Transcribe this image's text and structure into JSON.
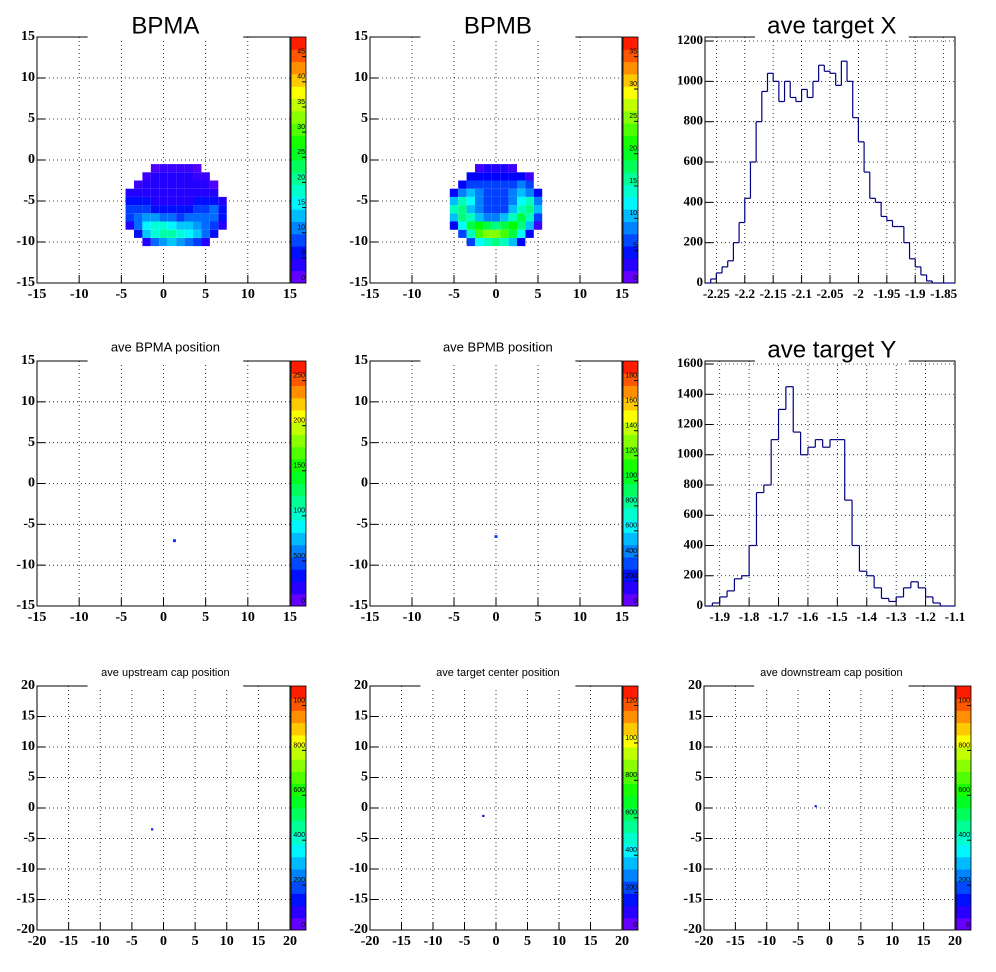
{
  "chart_data": [
    {
      "type": "heatmap",
      "title": "BPMA",
      "xlim": [
        -15,
        15
      ],
      "ylim": [
        -15,
        15
      ],
      "xticks": [
        -15,
        -10,
        -5,
        0,
        5,
        10,
        15
      ],
      "yticks": [
        -15,
        -10,
        -5,
        0,
        5,
        10,
        15
      ],
      "grid": true,
      "x": [
        -4,
        -3,
        -2,
        -1,
        0,
        1,
        2,
        3,
        4,
        5,
        6,
        7
      ],
      "y": [
        -10,
        -9,
        -8,
        -7,
        -6,
        -5,
        -4,
        -3,
        -2,
        -1
      ],
      "z": [
        [
          0,
          0,
          4,
          10,
          12,
          14,
          12,
          10,
          8,
          4,
          0,
          0
        ],
        [
          0,
          6,
          14,
          18,
          20,
          20,
          18,
          16,
          14,
          10,
          6,
          0
        ],
        [
          4,
          10,
          16,
          18,
          18,
          16,
          14,
          14,
          12,
          10,
          8,
          4
        ],
        [
          8,
          10,
          12,
          12,
          10,
          10,
          8,
          10,
          10,
          10,
          10,
          6
        ],
        [
          8,
          8,
          8,
          6,
          6,
          6,
          6,
          6,
          8,
          8,
          10,
          6
        ],
        [
          6,
          6,
          6,
          4,
          4,
          4,
          4,
          4,
          6,
          6,
          6,
          4
        ],
        [
          4,
          4,
          4,
          4,
          4,
          4,
          4,
          4,
          4,
          4,
          4,
          0
        ],
        [
          0,
          3,
          4,
          4,
          4,
          4,
          4,
          4,
          4,
          4,
          2,
          0
        ],
        [
          0,
          0,
          3,
          4,
          4,
          4,
          4,
          4,
          3,
          3,
          0,
          0
        ],
        [
          0,
          0,
          0,
          2,
          3,
          3,
          3,
          3,
          2,
          0,
          0,
          0
        ]
      ],
      "zlim": [
        0,
        49
      ],
      "zlabels": [
        "0",
        "5",
        "10",
        "15",
        "20",
        "25",
        "30",
        "35",
        "40",
        "45"
      ]
    },
    {
      "type": "heatmap",
      "title": "BPMB",
      "xlim": [
        -15,
        15
      ],
      "ylim": [
        -15,
        15
      ],
      "xticks": [
        -15,
        -10,
        -5,
        0,
        5,
        10,
        15
      ],
      "yticks": [
        -15,
        -10,
        -5,
        0,
        5,
        10,
        15
      ],
      "grid": true,
      "x": [
        -5,
        -4,
        -3,
        -2,
        -1,
        0,
        1,
        2,
        3,
        4,
        5
      ],
      "y": [
        -10,
        -9,
        -8,
        -7,
        -6,
        -5,
        -4,
        -3,
        -2,
        -1
      ],
      "z": [
        [
          0,
          0,
          6,
          12,
          14,
          16,
          14,
          10,
          4,
          0,
          0
        ],
        [
          0,
          6,
          14,
          22,
          24,
          24,
          22,
          18,
          12,
          4,
          0
        ],
        [
          4,
          12,
          18,
          20,
          18,
          16,
          18,
          20,
          16,
          10,
          2
        ],
        [
          10,
          16,
          14,
          10,
          8,
          8,
          10,
          14,
          18,
          14,
          6
        ],
        [
          14,
          16,
          10,
          8,
          6,
          6,
          6,
          10,
          14,
          16,
          10
        ],
        [
          10,
          14,
          12,
          8,
          6,
          6,
          6,
          8,
          12,
          14,
          8
        ],
        [
          4,
          8,
          10,
          8,
          6,
          6,
          6,
          8,
          10,
          8,
          4
        ],
        [
          0,
          4,
          6,
          6,
          6,
          6,
          6,
          6,
          8,
          6,
          0
        ],
        [
          0,
          0,
          4,
          4,
          4,
          4,
          4,
          4,
          4,
          2,
          0
        ],
        [
          0,
          0,
          0,
          2,
          3,
          3,
          3,
          2,
          0,
          0,
          0
        ]
      ],
      "zlim": [
        0,
        36
      ],
      "zlabels": [
        "0",
        "5",
        "10",
        "15",
        "20",
        "25",
        "30",
        "35"
      ]
    },
    {
      "type": "histogram",
      "title": "ave target X",
      "xlim": [
        -2.27,
        -1.83
      ],
      "ylim": [
        0,
        1220
      ],
      "xticks": [
        -2.25,
        -2.2,
        -2.15,
        -2.1,
        -2.05,
        -2,
        -1.95,
        -1.9,
        -1.85
      ],
      "yticks": [
        0,
        200,
        400,
        600,
        800,
        1000,
        1200
      ],
      "grid": true,
      "color": "#000080",
      "bins": [
        -2.27,
        -2.26,
        -2.25,
        -2.24,
        -2.23,
        -2.22,
        -2.21,
        -2.2,
        -2.19,
        -2.18,
        -2.17,
        -2.16,
        -2.15,
        -2.14,
        -2.13,
        -2.12,
        -2.11,
        -2.1,
        -2.09,
        -2.08,
        -2.07,
        -2.06,
        -2.05,
        -2.04,
        -2.03,
        -2.02,
        -2.01,
        -2,
        -1.99,
        -1.98,
        -1.97,
        -1.96,
        -1.95,
        -1.94,
        -1.93,
        -1.92,
        -1.91,
        -1.9,
        -1.89,
        -1.88,
        -1.87,
        -1.86,
        -1.85,
        -1.84,
        -1.83
      ],
      "counts": [
        0,
        20,
        50,
        80,
        110,
        200,
        300,
        420,
        600,
        800,
        950,
        1040,
        1000,
        900,
        1000,
        920,
        900,
        960,
        920,
        1000,
        1080,
        1050,
        1040,
        980,
        1100,
        1000,
        820,
        700,
        550,
        420,
        400,
        330,
        310,
        280,
        280,
        200,
        120,
        80,
        40,
        10,
        0,
        0,
        0,
        0
      ]
    },
    {
      "type": "heatmap",
      "title": "ave BPMA position",
      "xlim": [
        -15,
        15
      ],
      "ylim": [
        -15,
        15
      ],
      "xticks": [
        -15,
        -10,
        -5,
        0,
        5,
        10,
        15
      ],
      "yticks": [
        -15,
        -10,
        -5,
        0,
        5,
        10,
        15
      ],
      "grid": true,
      "x": [
        1.3
      ],
      "y": [
        -7
      ],
      "z": [
        [
          40
        ]
      ],
      "zlim": [
        0,
        260
      ],
      "zlabels": [
        "0",
        "500",
        "100",
        "150",
        "200",
        "250"
      ]
    },
    {
      "type": "heatmap",
      "title": "ave BPMB position",
      "xlim": [
        -15,
        15
      ],
      "ylim": [
        -15,
        15
      ],
      "xticks": [
        -15,
        -10,
        -5,
        0,
        5,
        10,
        15
      ],
      "yticks": [
        -15,
        -10,
        -5,
        0,
        5,
        10,
        15
      ],
      "grid": true,
      "x": [
        0
      ],
      "y": [
        -6.5
      ],
      "z": [
        [
          300
        ]
      ],
      "zlim": [
        0,
        1850
      ],
      "zlabels": [
        "0",
        "200",
        "400",
        "600",
        "800",
        "100",
        "120",
        "140",
        "160",
        "180"
      ]
    },
    {
      "type": "histogram",
      "title": "ave target Y",
      "xlim": [
        -1.95,
        -1.1
      ],
      "ylim": [
        0,
        1620
      ],
      "xticks": [
        -1.9,
        -1.8,
        -1.7,
        -1.6,
        -1.5,
        -1.4,
        -1.3,
        -1.2,
        -1.1
      ],
      "yticks": [
        0,
        200,
        400,
        600,
        800,
        1000,
        1200,
        1400,
        1600
      ],
      "grid": true,
      "color": "#000080",
      "bins": [
        -1.95,
        -1.925,
        -1.9,
        -1.875,
        -1.85,
        -1.825,
        -1.8,
        -1.775,
        -1.75,
        -1.725,
        -1.7,
        -1.675,
        -1.65,
        -1.625,
        -1.6,
        -1.575,
        -1.55,
        -1.525,
        -1.5,
        -1.475,
        -1.45,
        -1.425,
        -1.4,
        -1.375,
        -1.35,
        -1.325,
        -1.3,
        -1.275,
        -1.25,
        -1.225,
        -1.2,
        -1.175,
        -1.15,
        -1.125,
        -1.1
      ],
      "counts": [
        0,
        20,
        60,
        100,
        180,
        200,
        400,
        750,
        800,
        1100,
        1300,
        1450,
        1150,
        1000,
        1050,
        1100,
        1050,
        1100,
        1100,
        700,
        400,
        230,
        200,
        120,
        50,
        30,
        60,
        120,
        160,
        120,
        60,
        20,
        0,
        0
      ]
    },
    {
      "type": "heatmap",
      "title": "ave upstream cap position",
      "xlim": [
        -20,
        20
      ],
      "ylim": [
        -20,
        20
      ],
      "xticks": [
        -20,
        -15,
        -10,
        -5,
        0,
        5,
        10,
        15,
        20
      ],
      "yticks": [
        -20,
        -15,
        -10,
        -5,
        0,
        5,
        10,
        15,
        20
      ],
      "grid": true,
      "x": [
        -1.8
      ],
      "y": [
        -3.5
      ],
      "z": [
        [
          150
        ]
      ],
      "zlim": [
        0,
        1180
      ],
      "zlabels": [
        "0",
        "200",
        "400",
        "600",
        "800",
        "100"
      ]
    },
    {
      "type": "heatmap",
      "title": "ave target center  position",
      "xlim": [
        -20,
        20
      ],
      "ylim": [
        -20,
        20
      ],
      "xticks": [
        -20,
        -15,
        -10,
        -5,
        0,
        5,
        10,
        15,
        20
      ],
      "yticks": [
        -20,
        -15,
        -10,
        -5,
        0,
        5,
        10,
        15,
        20
      ],
      "grid": true,
      "x": [
        -2
      ],
      "y": [
        -1.3
      ],
      "z": [
        [
          150
        ]
      ],
      "zlim": [
        0,
        1350
      ],
      "zlabels": [
        "0",
        "200",
        "400",
        "600",
        "800",
        "100",
        "120"
      ]
    },
    {
      "type": "heatmap",
      "title": "ave downstream cap position",
      "xlim": [
        -20,
        20
      ],
      "ylim": [
        -20,
        20
      ],
      "xticks": [
        -20,
        -15,
        -10,
        -5,
        0,
        5,
        10,
        15,
        20
      ],
      "yticks": [
        -20,
        -15,
        -10,
        -5,
        0,
        5,
        10,
        15,
        20
      ],
      "grid": true,
      "x": [
        -2.2
      ],
      "y": [
        0.3
      ],
      "z": [
        [
          150
        ]
      ],
      "zlim": [
        0,
        1100
      ],
      "zlabels": [
        "0",
        "200",
        "400",
        "600",
        "800",
        "100"
      ]
    }
  ]
}
